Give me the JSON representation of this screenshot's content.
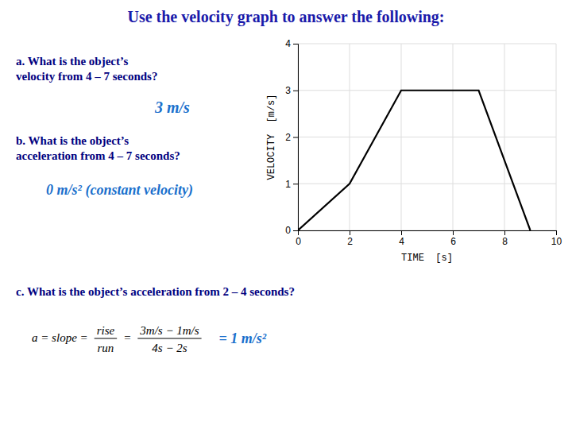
{
  "chart_data": {
    "type": "line",
    "title": "Use the velocity graph to answer the following:",
    "x_label": "TIME  [s]",
    "y_label": "VELOCITY  [m/s]",
    "x": [
      0,
      2,
      4,
      7,
      9
    ],
    "values": [
      0,
      1,
      3,
      3,
      0
    ],
    "color": "#000000",
    "xlim": [
      0,
      10
    ],
    "ylim": [
      0,
      4
    ],
    "xticks": [
      0,
      2,
      4,
      6,
      8,
      10
    ],
    "yticks": [
      0,
      1,
      2,
      3,
      4
    ],
    "grid": true,
    "annotations": [
      "a. What is the object’s\nvelocity from 4 – 7 seconds?",
      "3 m/s",
      "b. What is the object’s\nacceleration from 4 – 7 seconds?",
      "0 m/s² (constant velocity)",
      "c. What is the object’s acceleration from 2 – 4 seconds?"
    ],
    "formula": [
      "a = slope =",
      [
        "rise",
        "run"
      ],
      "=",
      [
        "3m/s − 1m/s",
        "4s − 2s"
      ]
    ],
    "answer": "= 1 m/s²"
  }
}
